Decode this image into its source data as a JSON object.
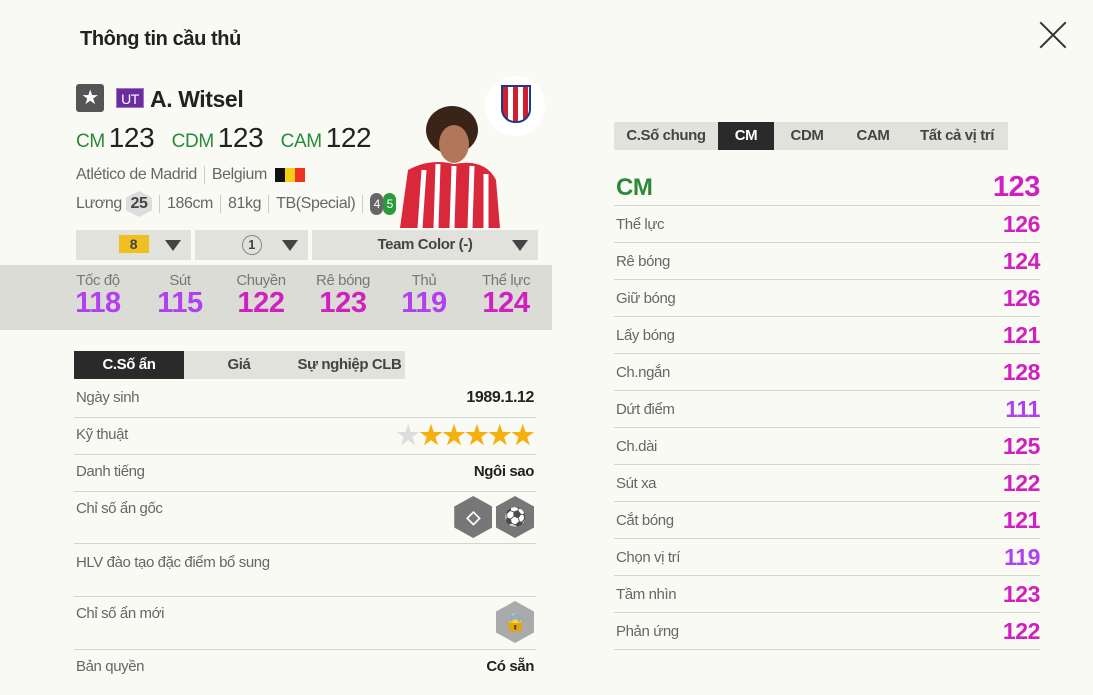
{
  "header": {
    "title": "Thông tin cầu thủ",
    "close_icon": "close-icon"
  },
  "player": {
    "season_badge": "UT",
    "name": "A. Witsel",
    "positions": [
      {
        "pos": "CM",
        "ovr": "123"
      },
      {
        "pos": "CDM",
        "ovr": "123"
      },
      {
        "pos": "CAM",
        "ovr": "122"
      }
    ],
    "club": "Atlético de Madrid",
    "nation": "Belgium",
    "salary_label": "Lương",
    "salary": "25",
    "height": "186cm",
    "weight": "81kg",
    "body_type": "TB(Special)",
    "weak_foot_left": "4",
    "weak_foot_right": "5",
    "colors": {
      "position": "#2a8a3a",
      "stat_high": "#d020c0",
      "stat_mid": "#b040f0"
    }
  },
  "selectors": {
    "upgrade": "8",
    "level": "1",
    "team_color": "Team Color (-)"
  },
  "stats": [
    {
      "label": "Tốc độ",
      "value": "118",
      "tier": "mid"
    },
    {
      "label": "Sút",
      "value": "115",
      "tier": "mid"
    },
    {
      "label": "Chuyền",
      "value": "122",
      "tier": "high"
    },
    {
      "label": "Rê bóng",
      "value": "123",
      "tier": "high"
    },
    {
      "label": "Thủ",
      "value": "119",
      "tier": "mid"
    },
    {
      "label": "Thể lực",
      "value": "124",
      "tier": "high"
    }
  ],
  "left_tabs": [
    {
      "label": "C.Số ẩn",
      "active": true
    },
    {
      "label": "Giá"
    },
    {
      "label": "Sự nghiệp CLB"
    }
  ],
  "details": {
    "birth_label": "Ngày sinh",
    "birth": "1989.1.12",
    "skill_label": "Kỹ thuật",
    "skill_stars": 5,
    "skill_max": 6,
    "fame_label": "Danh tiếng",
    "fame": "Ngôi sao",
    "orig_traits_label": "Chỉ số ẩn gốc",
    "orig_traits_icons": [
      "diamond-trait-icon",
      "long-shot-trait-icon"
    ],
    "coach_label": "HLV đào tạo đặc điểm bổ sung",
    "new_traits_label": "Chỉ số ẩn mới",
    "new_traits_icon": "lock-icon",
    "license_label": "Bản quyền",
    "license": "Có sẵn"
  },
  "right_tabs": [
    {
      "label": "C.Số chung"
    },
    {
      "label": "CM",
      "active": true
    },
    {
      "label": "CDM"
    },
    {
      "label": "CAM"
    },
    {
      "label": "Tất cả vị trí"
    }
  ],
  "position_detail": {
    "pos": "CM",
    "ovr": "123",
    "rows": [
      {
        "label": "Thể lực",
        "value": "126",
        "tier": "high"
      },
      {
        "label": "Rê bóng",
        "value": "124",
        "tier": "high"
      },
      {
        "label": "Giữ bóng",
        "value": "126",
        "tier": "high"
      },
      {
        "label": "Lấy bóng",
        "value": "121",
        "tier": "high"
      },
      {
        "label": "Ch.ngắn",
        "value": "128",
        "tier": "high"
      },
      {
        "label": "Dứt điểm",
        "value": "111",
        "tier": "mid"
      },
      {
        "label": "Ch.dài",
        "value": "125",
        "tier": "high"
      },
      {
        "label": "Sút xa",
        "value": "122",
        "tier": "high"
      },
      {
        "label": "Cắt bóng",
        "value": "121",
        "tier": "high"
      },
      {
        "label": "Chọn vị trí",
        "value": "119",
        "tier": "mid"
      },
      {
        "label": "Tầm nhìn",
        "value": "123",
        "tier": "high"
      },
      {
        "label": "Phản ứng",
        "value": "122",
        "tier": "high"
      }
    ]
  }
}
